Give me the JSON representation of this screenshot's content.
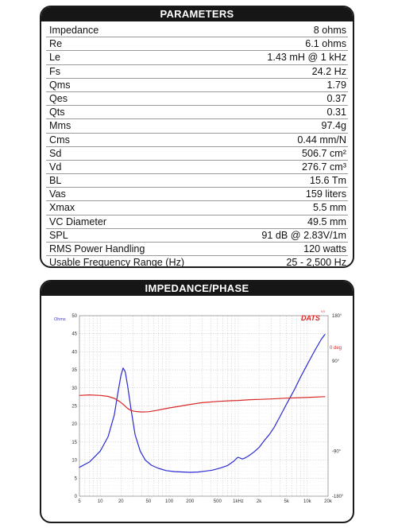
{
  "parameters": {
    "title": "PARAMETERS",
    "rows": [
      {
        "name": "Impedance",
        "value": "8 ohms"
      },
      {
        "name": "Re",
        "value": "6.1 ohms"
      },
      {
        "name": "Le",
        "value": "1.43 mH @ 1 kHz"
      },
      {
        "name": "Fs",
        "value": "24.2 Hz"
      },
      {
        "name": "Qms",
        "value": "1.79"
      },
      {
        "name": "Qes",
        "value": "0.37"
      },
      {
        "name": "Qts",
        "value": "0.31"
      },
      {
        "name": "Mms",
        "value": "97.4g"
      },
      {
        "name": "Cms",
        "value": "0.44 mm/N"
      },
      {
        "name": "Sd",
        "value": "506.7 cm²"
      },
      {
        "name": "Vd",
        "value": "276.7 cm³"
      },
      {
        "name": "BL",
        "value": "15.6 Tm"
      },
      {
        "name": "Vas",
        "value": "159 liters"
      },
      {
        "name": "Xmax",
        "value": "5.5 mm"
      },
      {
        "name": "VC Diameter",
        "value": "49.5 mm"
      },
      {
        "name": "SPL",
        "value": "91 dB @ 2.83V/1m"
      },
      {
        "name": "RMS Power Handling",
        "value": "120 watts"
      },
      {
        "name": "Usable Frequency Range (Hz)",
        "value": "25 - 2,500 Hz"
      }
    ]
  },
  "impedance_panel": {
    "title": "IMPEDANCE/PHASE",
    "logo_text": "DATS",
    "logo_small": "V3",
    "left_unit": "Ohms",
    "phase_zero_label": "0 deg"
  },
  "chart_data": {
    "type": "line",
    "xscale": "log",
    "xlim": [
      5,
      20000
    ],
    "ylim": [
      0,
      50
    ],
    "phase_lim": [
      -180,
      180
    ],
    "x_tick_labels": [
      {
        "x": 5,
        "label": "5"
      },
      {
        "x": 10,
        "label": "10"
      },
      {
        "x": 20,
        "label": "20"
      },
      {
        "x": 50,
        "label": "50"
      },
      {
        "x": 100,
        "label": "100"
      },
      {
        "x": 200,
        "label": "200"
      },
      {
        "x": 500,
        "label": "500"
      },
      {
        "x": 1000,
        "label": "1kHz"
      },
      {
        "x": 2000,
        "label": "2k"
      },
      {
        "x": 5000,
        "label": "5k"
      },
      {
        "x": 10000,
        "label": "10k"
      },
      {
        "x": 20000,
        "label": "20k"
      }
    ],
    "y_tick_labels": [
      "0",
      "5",
      "10",
      "15",
      "20",
      "25",
      "30",
      "35",
      "40",
      "45",
      "50"
    ],
    "phase_tick_labels": [
      {
        "v": 180,
        "label": "180°"
      },
      {
        "v": 90,
        "label": "90°"
      },
      {
        "v": -90,
        "label": "-90°"
      },
      {
        "v": -180,
        "label": "-180°"
      }
    ],
    "series": [
      {
        "color": "#2b2bd6",
        "axis": "ohms",
        "points": [
          [
            5,
            8.0
          ],
          [
            7,
            9.5
          ],
          [
            10,
            12.5
          ],
          [
            13,
            16.5
          ],
          [
            16,
            22.5
          ],
          [
            18,
            28.5
          ],
          [
            20,
            33.5
          ],
          [
            21.5,
            35.5
          ],
          [
            23,
            34.5
          ],
          [
            25,
            30.5
          ],
          [
            28,
            24.0
          ],
          [
            32,
            17.0
          ],
          [
            38,
            12.5
          ],
          [
            45,
            10.0
          ],
          [
            55,
            8.6
          ],
          [
            70,
            7.7
          ],
          [
            90,
            7.1
          ],
          [
            120,
            6.8
          ],
          [
            160,
            6.7
          ],
          [
            200,
            6.6
          ],
          [
            260,
            6.7
          ],
          [
            320,
            6.9
          ],
          [
            420,
            7.2
          ],
          [
            550,
            7.8
          ],
          [
            700,
            8.5
          ],
          [
            850,
            9.6
          ],
          [
            950,
            10.5
          ],
          [
            1000,
            10.8
          ],
          [
            1080,
            10.5
          ],
          [
            1150,
            10.3
          ],
          [
            1250,
            10.6
          ],
          [
            1400,
            11.1
          ],
          [
            1700,
            12.3
          ],
          [
            2000,
            13.5
          ],
          [
            2400,
            15.5
          ],
          [
            2800,
            17.0
          ],
          [
            3300,
            19.0
          ],
          [
            4000,
            22.0
          ],
          [
            5000,
            25.5
          ],
          [
            6500,
            29.5
          ],
          [
            8000,
            33.0
          ],
          [
            10000,
            36.5
          ],
          [
            13000,
            40.5
          ],
          [
            16000,
            43.5
          ],
          [
            18000,
            44.8
          ]
        ]
      },
      {
        "color": "#d62a2a",
        "axis": "phase",
        "points": [
          [
            5,
            21.0
          ],
          [
            7,
            22.0
          ],
          [
            10,
            21.0
          ],
          [
            13,
            19.0
          ],
          [
            16,
            15.0
          ],
          [
            19,
            9.0
          ],
          [
            22,
            2.0
          ],
          [
            25,
            -5.0
          ],
          [
            28,
            -9.0
          ],
          [
            32,
            -11.0
          ],
          [
            40,
            -12.0
          ],
          [
            50,
            -11.5
          ],
          [
            65,
            -9.0
          ],
          [
            80,
            -6.5
          ],
          [
            100,
            -4.0
          ],
          [
            150,
            0.0
          ],
          [
            200,
            3.0
          ],
          [
            300,
            6.5
          ],
          [
            500,
            9.0
          ],
          [
            800,
            10.5
          ],
          [
            1000,
            11.0
          ],
          [
            1500,
            12.5
          ],
          [
            2000,
            13.0
          ],
          [
            3000,
            14.0
          ],
          [
            5000,
            15.5
          ],
          [
            8000,
            16.5
          ],
          [
            12000,
            17.5
          ],
          [
            18000,
            18.5
          ]
        ]
      }
    ]
  }
}
